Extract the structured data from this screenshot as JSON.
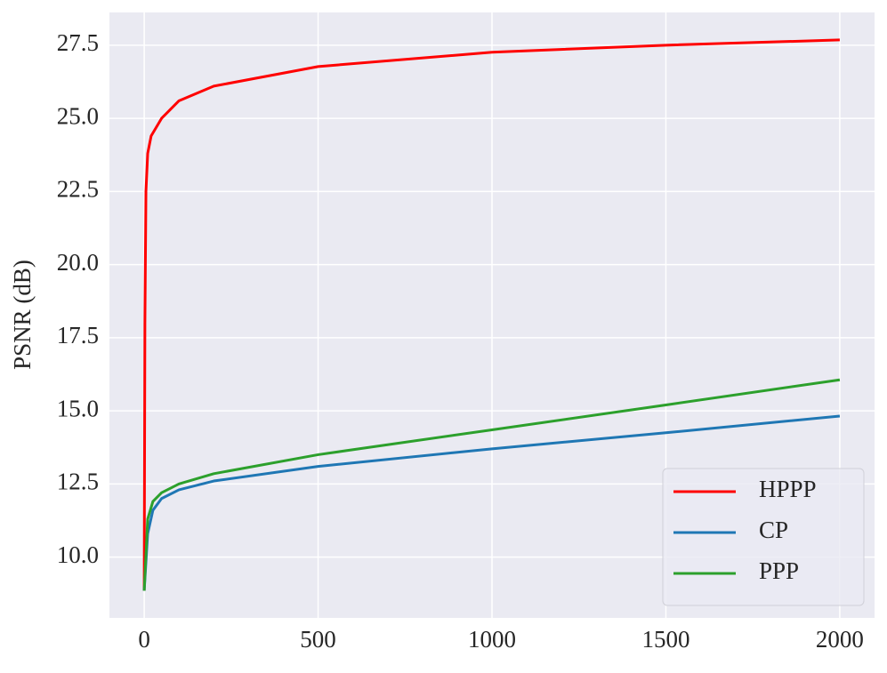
{
  "chart_data": {
    "type": "line",
    "y_label": "PSNR (dB)",
    "xlim": [
      -100,
      2100
    ],
    "ylim": [
      7.92,
      28.62
    ],
    "xticks": [
      0,
      500,
      1000,
      1500,
      2000
    ],
    "yticks": [
      {
        "value": 10,
        "label": "10.0"
      },
      12.5,
      {
        "value": 15,
        "label": "15.0"
      },
      17.5,
      {
        "value": 20,
        "label": "20.0"
      },
      22.5,
      {
        "value": 25,
        "label": "25.0"
      },
      27.5
    ],
    "grid": true,
    "legend": "lower right",
    "series": [
      {
        "name": "HPPP",
        "color": "#ff0000",
        "x": [
          0,
          2,
          5,
          10,
          20,
          50,
          100,
          200,
          500,
          1000,
          1500,
          2000
        ],
        "values": [
          8.85,
          18,
          22.5,
          23.8,
          24.4,
          25.0,
          25.6,
          26.1,
          26.77,
          27.26,
          27.5,
          27.68
        ]
      },
      {
        "name": "CP",
        "color": "#1f77b4",
        "x": [
          0,
          10,
          25,
          50,
          100,
          200,
          500,
          1000,
          1500,
          2000
        ],
        "values": [
          8.85,
          10.8,
          11.6,
          12.0,
          12.3,
          12.6,
          13.1,
          13.7,
          14.25,
          14.82
        ]
      },
      {
        "name": "PPP",
        "color": "#2ca02c",
        "x": [
          0,
          10,
          25,
          50,
          100,
          200,
          500,
          1000,
          1500,
          2000
        ],
        "values": [
          8.85,
          11.3,
          11.9,
          12.2,
          12.5,
          12.85,
          13.5,
          14.35,
          15.2,
          16.06
        ]
      }
    ]
  }
}
